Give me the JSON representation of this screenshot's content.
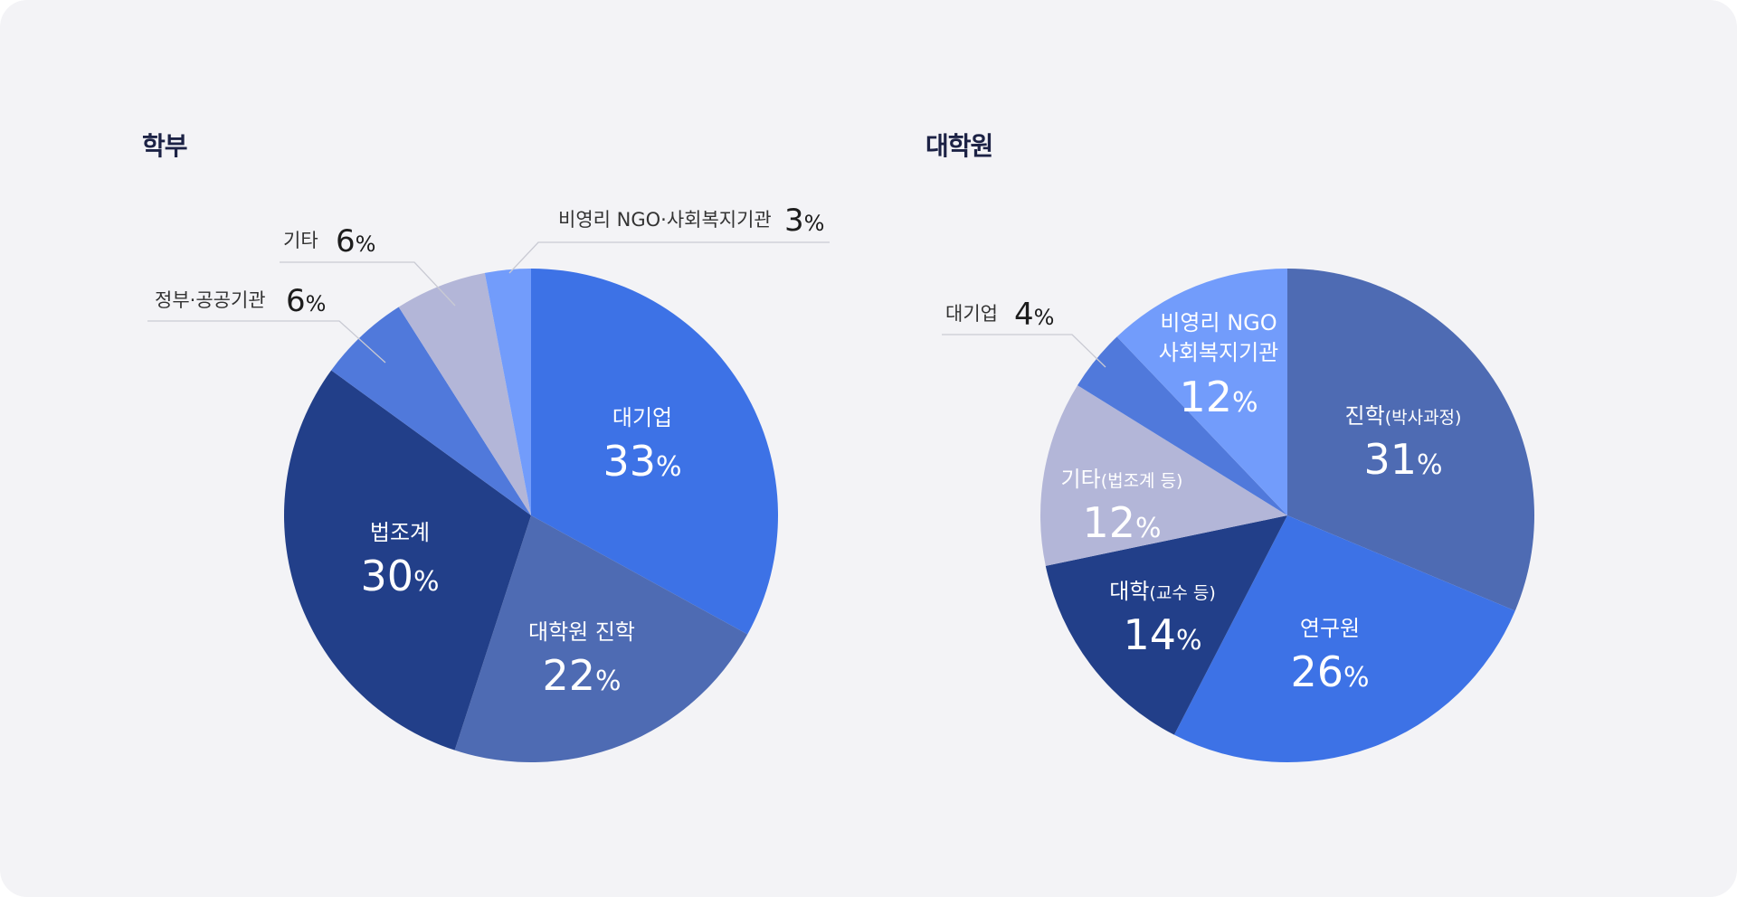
{
  "charts": [
    {
      "title": "학부",
      "cx": 587,
      "cy": 570,
      "r": 273,
      "slices": [
        {
          "label": "대기업",
          "value": 33,
          "color": "#3d72e6",
          "inside": true
        },
        {
          "label": "대학원 진학",
          "value": 22,
          "color": "#4e6bb3",
          "inside": true
        },
        {
          "label": "법조계",
          "value": 30,
          "color": "#223f89",
          "inside": true
        },
        {
          "label": "정부·공공기관",
          "value": 6,
          "color": "#5079db",
          "inside": false
        },
        {
          "label": "기타",
          "value": 6,
          "color": "#b3b6d8",
          "inside": false
        },
        {
          "label": "비영리 NGO·사회복지기관",
          "value": 3,
          "color": "#729cfb",
          "inside": false
        }
      ]
    },
    {
      "title": "대학원",
      "cx": 1423,
      "cy": 570,
      "r": 273,
      "slices": [
        {
          "label": "진학",
          "sub": "(박사과정)",
          "value": 31,
          "color": "#4e6bb3",
          "inside": true
        },
        {
          "label": "연구원",
          "value": 26,
          "color": "#3d72e6",
          "inside": true
        },
        {
          "label": "대학",
          "sub": "(교수 등)",
          "value": 14,
          "color": "#223f89",
          "inside": true
        },
        {
          "label": "기타",
          "sub": "(법조계 등)",
          "value": 12,
          "color": "#b3b6d8",
          "inside": true
        },
        {
          "label": "대기업",
          "value": 4,
          "color": "#5079db",
          "inside": false
        },
        {
          "label": "비영리 NGO",
          "label2": "사회복지기관",
          "value": 12,
          "color": "#729cfb",
          "inside": true
        }
      ]
    }
  ],
  "percent_sign": "%",
  "chart_data": [
    {
      "type": "pie",
      "title": "학부",
      "categories": [
        "대기업",
        "대학원 진학",
        "법조계",
        "정부·공공기관",
        "기타",
        "비영리 NGO·사회복지기관"
      ],
      "values": [
        33,
        22,
        30,
        6,
        6,
        3
      ],
      "unit": "%"
    },
    {
      "type": "pie",
      "title": "대학원",
      "categories": [
        "진학(박사과정)",
        "연구원",
        "대학(교수 등)",
        "기타(법조계 등)",
        "대기업",
        "비영리 NGO 사회복지기관"
      ],
      "values": [
        31,
        26,
        14,
        12,
        4,
        12
      ],
      "unit": "%"
    }
  ]
}
